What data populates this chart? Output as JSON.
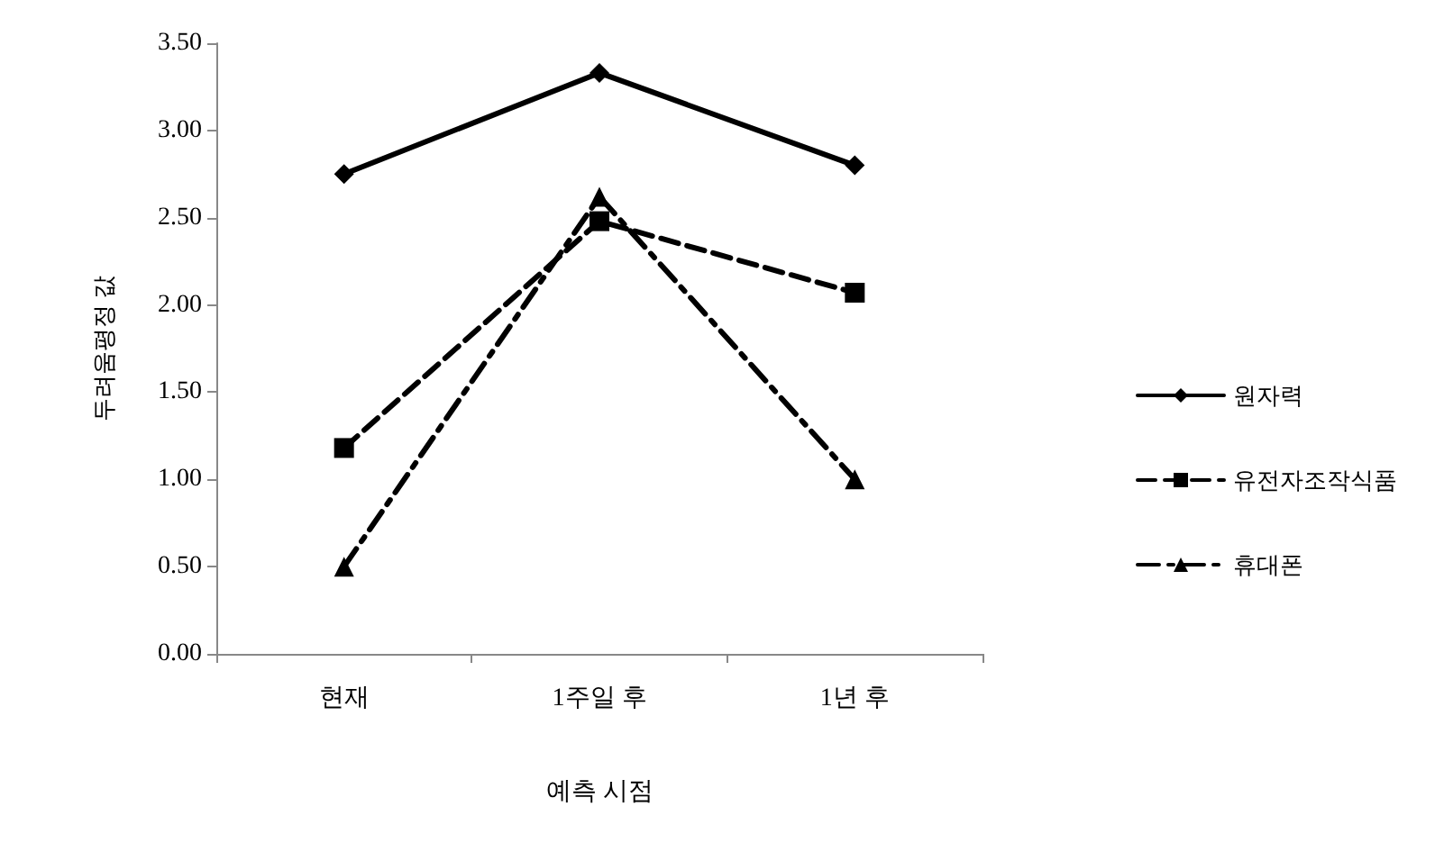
{
  "chart_data": {
    "type": "line",
    "xlabel": "예측 시점",
    "ylabel": "두려움평정 값",
    "categories": [
      "현재",
      "1주일 후",
      "1년 후"
    ],
    "series": [
      {
        "name": "원자력",
        "color": "#000000",
        "values": [
          2.75,
          3.33,
          2.8
        ],
        "marker": "diamond",
        "line_style": "solid"
      },
      {
        "name": "유전자조작식품",
        "color": "#000000",
        "values": [
          1.18,
          2.48,
          2.07
        ],
        "marker": "square",
        "line_style": "dashed"
      },
      {
        "name": "휴대폰",
        "color": "#000000",
        "values": [
          0.5,
          2.62,
          1.0
        ],
        "marker": "triangle",
        "line_style": "dotted"
      }
    ],
    "ylim": [
      0,
      3.5
    ],
    "yticks": [
      {
        "value": 0,
        "label": "0.00"
      },
      {
        "value": 0.5,
        "label": "0.50"
      },
      {
        "value": 1,
        "label": "1.00"
      },
      {
        "value": 1.5,
        "label": "1.50"
      },
      {
        "value": 2,
        "label": "2.00"
      },
      {
        "value": 2.5,
        "label": "2.50"
      },
      {
        "value": 3,
        "label": "3.00"
      },
      {
        "value": 3.5,
        "label": "3.50"
      }
    ],
    "grid": false,
    "legend": "right"
  }
}
